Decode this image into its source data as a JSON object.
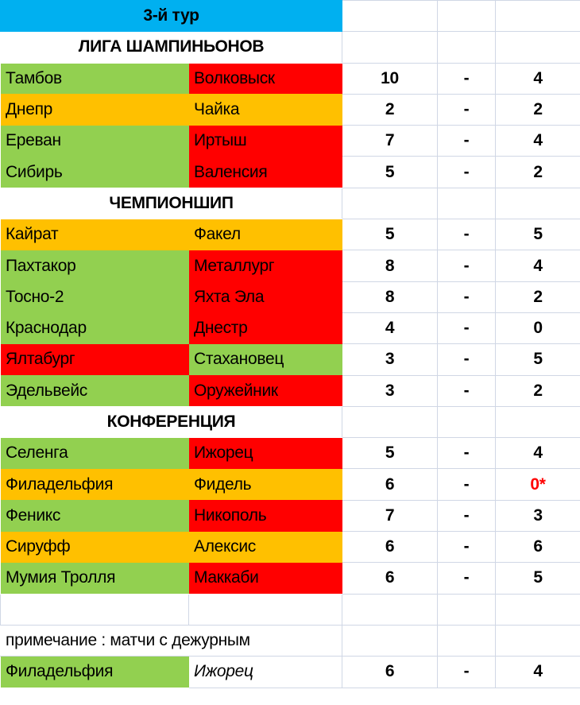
{
  "title": "3-й тур",
  "colors": {
    "header": "#00b0f0",
    "win": "#92d050",
    "draw": "#ffc000",
    "loss": "#ff0000"
  },
  "sections": [
    {
      "name": "ЛИГА ШАМПИНЬОНОВ",
      "matches": [
        {
          "home": "Тамбов",
          "home_color": "green",
          "away": "Волковыск",
          "away_color": "red",
          "home_score": "10",
          "sep": "-",
          "away_score": "4"
        },
        {
          "home": "Днепр",
          "home_color": "orange",
          "away": "Чайка",
          "away_color": "orange",
          "home_score": "2",
          "sep": "-",
          "away_score": "2"
        },
        {
          "home": "Ереван",
          "home_color": "green",
          "away": "Иртыш",
          "away_color": "red",
          "home_score": "7",
          "sep": "-",
          "away_score": "4"
        },
        {
          "home": "Сибирь",
          "home_color": "green",
          "away": "Валенсия",
          "away_color": "red",
          "home_score": "5",
          "sep": "-",
          "away_score": "2"
        }
      ]
    },
    {
      "name": "ЧЕМПИОНШИП",
      "matches": [
        {
          "home": "Кайрат",
          "home_color": "orange",
          "away": "Факел",
          "away_color": "orange",
          "home_score": "5",
          "sep": "-",
          "away_score": "5"
        },
        {
          "home": "Пахтакор",
          "home_color": "green",
          "away": "Металлург",
          "away_color": "red",
          "home_score": "8",
          "sep": "-",
          "away_score": "4"
        },
        {
          "home": "Тосно-2",
          "home_color": "green",
          "away": "Яхта Эла",
          "away_color": "red",
          "home_score": "8",
          "sep": "-",
          "away_score": "2"
        },
        {
          "home": "Краснодар",
          "home_color": "green",
          "away": "Днестр",
          "away_color": "red",
          "home_score": "4",
          "sep": "-",
          "away_score": "0"
        },
        {
          "home": "Ялтабург",
          "home_color": "red",
          "away": "Стахановец",
          "away_color": "green",
          "home_score": "3",
          "sep": "-",
          "away_score": "5"
        },
        {
          "home": "Эдельвейс",
          "home_color": "green",
          "away": "Оружейник",
          "away_color": "red",
          "home_score": "3",
          "sep": "-",
          "away_score": "2"
        }
      ]
    },
    {
      "name": "КОНФЕРЕНЦИЯ",
      "matches": [
        {
          "home": "Селенга",
          "home_color": "green",
          "away": "Ижорец",
          "away_color": "red",
          "home_score": "5",
          "sep": "-",
          "away_score": "4"
        },
        {
          "home": "Филадельфия",
          "home_color": "orange",
          "away": "Фидель",
          "away_color": "orange",
          "home_score": "6",
          "sep": "-",
          "away_score": "0*",
          "away_score_red": true
        },
        {
          "home": "Феникс",
          "home_color": "green",
          "away": "Никополь",
          "away_color": "red",
          "home_score": "7",
          "sep": "-",
          "away_score": "3"
        },
        {
          "home": "Сируфф",
          "home_color": "orange",
          "away": "Алексис",
          "away_color": "orange",
          "home_score": "6",
          "sep": "-",
          "away_score": "6"
        },
        {
          "home": "Мумия Тролля",
          "home_color": "green",
          "away": "Маккаби",
          "away_color": "red",
          "home_score": "6",
          "sep": "-",
          "away_score": "5"
        }
      ]
    }
  ],
  "note": "примечание : матчи с дежурным",
  "duty_match": {
    "home": "Филадельфия",
    "home_color": "green",
    "away": "Ижорец",
    "away_italic": true,
    "home_score": "6",
    "sep": "-",
    "away_score": "4"
  }
}
